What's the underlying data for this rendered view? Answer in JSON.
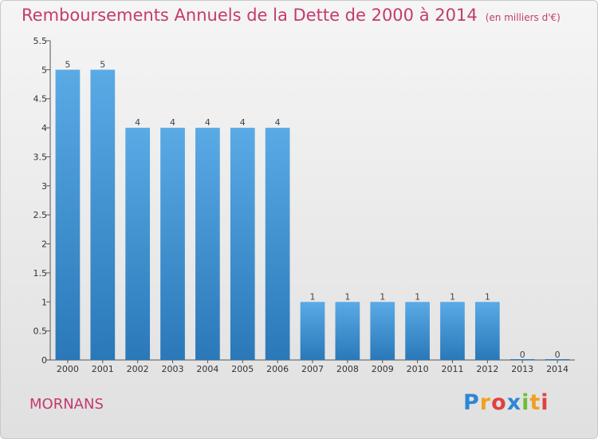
{
  "header": {
    "title": "Remboursements Annuels de la Dette de 2000 à 2014",
    "unit": "(en milliers d'€)"
  },
  "footer": {
    "commune": "MORNANS",
    "brand_letters": [
      "P",
      "r",
      "o",
      "x",
      "i",
      "t",
      "i"
    ],
    "brand_colors": [
      "#2e86d4",
      "#f0a020",
      "#e04040",
      "#2e86d4",
      "#6bbf3a",
      "#f0a020",
      "#e04040"
    ]
  },
  "chart_data": {
    "type": "bar",
    "title": "Remboursements Annuels de la Dette de 2000 à 2014",
    "xlabel": "",
    "ylabel": "",
    "categories": [
      "2000",
      "2001",
      "2002",
      "2003",
      "2004",
      "2005",
      "2006",
      "2007",
      "2008",
      "2009",
      "2010",
      "2011",
      "2012",
      "2013",
      "2014"
    ],
    "values": [
      5,
      5,
      4,
      4,
      4,
      4,
      4,
      1,
      1,
      1,
      1,
      1,
      1,
      0,
      0
    ],
    "ylim": [
      0,
      5.5
    ],
    "yticks": [
      "0",
      "0.5",
      "1",
      "1.5",
      "2",
      "2.5",
      "3",
      "3.5",
      "4",
      "4.5",
      "5",
      "5.5"
    ],
    "grid": false,
    "bar_color_top": "#5aaae6",
    "bar_color_bottom": "#2a78b8"
  }
}
